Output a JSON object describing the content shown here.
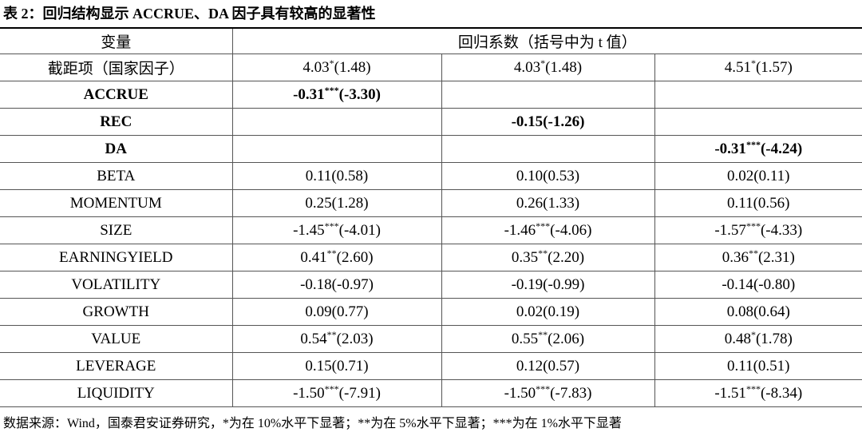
{
  "header": {
    "title": "表 2：回归结构显示 ACCRUE、DA 因子具有较高的显著性"
  },
  "table": {
    "columns": [
      "变量",
      "回归系数（括号中为 t 值）"
    ],
    "rows": [
      {
        "label": "截距项（国家因子）",
        "cells": [
          {
            "coef": "4.03",
            "stars": "*",
            "t": "(1.48)"
          },
          {
            "coef": "4.03",
            "stars": "*",
            "t": "(1.48)"
          },
          {
            "coef": "4.51",
            "stars": "*",
            "t": "(1.57)"
          }
        ]
      },
      {
        "label": "ACCRUE",
        "bold": true,
        "cells": [
          {
            "coef": "-0.31",
            "stars": "***",
            "t": "(-3.30)"
          },
          null,
          null
        ]
      },
      {
        "label": "REC",
        "bold": true,
        "cells": [
          null,
          {
            "coef": "-0.15",
            "t": "(-1.26)"
          },
          null
        ]
      },
      {
        "label": "DA",
        "bold": true,
        "cells": [
          null,
          null,
          {
            "coef": "-0.31",
            "stars": "***",
            "t": "(-4.24)"
          }
        ]
      },
      {
        "label": "BETA",
        "cells": [
          {
            "coef": "0.11",
            "t": "(0.58)"
          },
          {
            "coef": "0.10",
            "t": "(0.53)"
          },
          {
            "coef": "0.02",
            "t": "(0.11)"
          }
        ]
      },
      {
        "label": "MOMENTUM",
        "cells": [
          {
            "coef": "0.25",
            "t": "(1.28)"
          },
          {
            "coef": "0.26",
            "t": "(1.33)"
          },
          {
            "coef": "0.11",
            "t": "(0.56)"
          }
        ]
      },
      {
        "label": "SIZE",
        "cells": [
          {
            "coef": "-1.45",
            "stars": "***",
            "t": "(-4.01)"
          },
          {
            "coef": "-1.46",
            "stars": "***",
            "t": "(-4.06)"
          },
          {
            "coef": "-1.57",
            "stars": "***",
            "t": "(-4.33)"
          }
        ]
      },
      {
        "label": "EARNINGYIELD",
        "cells": [
          {
            "coef": "0.41",
            "stars": "**",
            "t": "(2.60)"
          },
          {
            "coef": "0.35",
            "stars": "**",
            "t": "(2.20)"
          },
          {
            "coef": "0.36",
            "stars": "**",
            "t": "(2.31)"
          }
        ]
      },
      {
        "label": "VOLATILITY",
        "cells": [
          {
            "coef": "-0.18",
            "t": "(-0.97)"
          },
          {
            "coef": "-0.19",
            "t": "(-0.99)"
          },
          {
            "coef": "-0.14",
            "t": "(-0.80)"
          }
        ]
      },
      {
        "label": "GROWTH",
        "cells": [
          {
            "coef": "0.09",
            "t": "(0.77)"
          },
          {
            "coef": "0.02",
            "t": "(0.19)"
          },
          {
            "coef": "0.08",
            "t": "(0.64)"
          }
        ]
      },
      {
        "label": "VALUE",
        "cells": [
          {
            "coef": "0.54",
            "stars": "**",
            "t": "(2.03)"
          },
          {
            "coef": "0.55",
            "stars": "**",
            "t": "(2.06)"
          },
          {
            "coef": "0.48",
            "stars": "*",
            "t": "(1.78)"
          }
        ]
      },
      {
        "label": "LEVERAGE",
        "cells": [
          {
            "coef": "0.15",
            "t": "(0.71)"
          },
          {
            "coef": "0.12",
            "t": "(0.57)"
          },
          {
            "coef": "0.11",
            "t": "(0.51)"
          }
        ]
      },
      {
        "label": "LIQUIDITY",
        "cells": [
          {
            "coef": "-1.50",
            "stars": "***",
            "t": "(-7.91)"
          },
          {
            "coef": "-1.50",
            "stars": "***",
            "t": "(-7.83)"
          },
          {
            "coef": "-1.51",
            "stars": "***",
            "t": "(-8.34)"
          }
        ]
      }
    ]
  },
  "footer": {
    "note": "数据来源：Wind，国泰君安证券研究，*为在 10%水平下显著；**为在 5%水平下显著；***为在 1%水平下显著"
  }
}
